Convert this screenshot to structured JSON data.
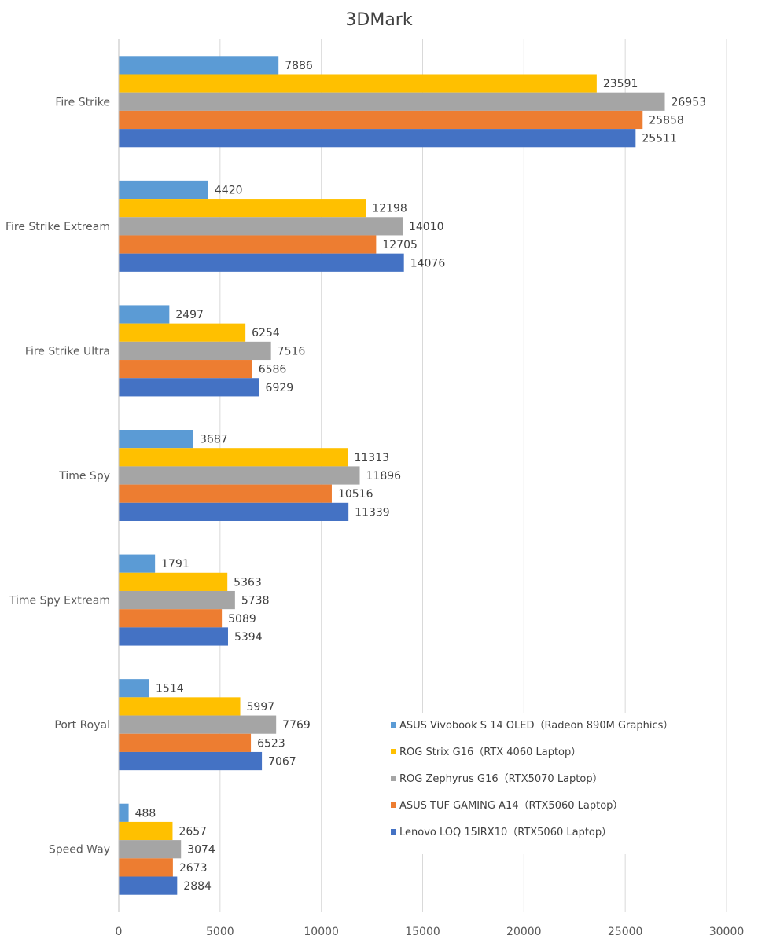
{
  "chart_data": {
    "type": "bar",
    "orientation": "horizontal",
    "title": "3DMark",
    "xlabel": "",
    "ylabel": "",
    "xlim": [
      0,
      30000
    ],
    "xticks": [
      0,
      5000,
      10000,
      15000,
      20000,
      25000,
      30000
    ],
    "grid": true,
    "legend_position": "bottom-right",
    "categories": [
      "Fire Strike",
      "Fire Strike Extream",
      "Fire Strike Ultra",
      "Time Spy",
      "Time Spy Extream",
      "Port Royal",
      "Speed Way"
    ],
    "series": [
      {
        "name": "ASUS Vivobook S 14 OLED（Radeon 890M Graphics）",
        "color": "#5B9BD5",
        "values": [
          7886,
          4420,
          2497,
          3687,
          1791,
          1514,
          488
        ]
      },
      {
        "name": "ROG Strix G16（RTX 4060 Laptop）",
        "color": "#FFC000",
        "values": [
          23591,
          12198,
          6254,
          11313,
          5363,
          5997,
          2657
        ]
      },
      {
        "name": "ROG Zephyrus G16（RTX5070 Laptop）",
        "color": "#A5A5A5",
        "values": [
          26953,
          14010,
          7516,
          11896,
          5738,
          7769,
          3074
        ]
      },
      {
        "name": "ASUS TUF GAMING A14（RTX5060 Laptop）",
        "color": "#ED7D31",
        "values": [
          25858,
          12705,
          6586,
          10516,
          5089,
          6523,
          2673
        ]
      },
      {
        "name": "Lenovo LOQ 15IRX10（RTX5060 Laptop）",
        "color": "#4472C4",
        "values": [
          25511,
          14076,
          6929,
          11339,
          5394,
          7067,
          2884
        ]
      }
    ]
  }
}
